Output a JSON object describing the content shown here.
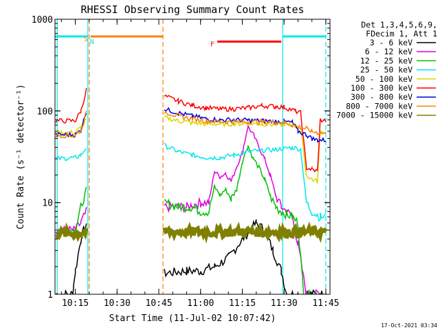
{
  "chart_data": {
    "type": "line",
    "title": "RHESSI Observing Summary Count Rates",
    "xlabel": "Start Time (11-Jul-02 10:07:42)",
    "ylabel": "Count Rate (s⁻¹ detector⁻¹)",
    "y_scale": "log",
    "ylim": [
      1,
      1000
    ],
    "xlim": [
      "10:07:42",
      "11:46:30"
    ],
    "x_ticks": [
      "10:15",
      "10:30",
      "10:45",
      "11:00",
      "11:15",
      "11:30",
      "11:45"
    ],
    "y_ticks": [
      "1",
      "10",
      "100",
      "1000"
    ],
    "legend_header": [
      "Det 1,3,4,5,6,9,",
      "FDecim 1, Att 1"
    ],
    "legend_position": "right",
    "footer_date": "17-Oct-2021 03:34",
    "markers": [
      {
        "label": "S",
        "start": "10:20:30",
        "end": "10:46:30",
        "level": 650,
        "color": "#ff8000"
      },
      {
        "label": "N",
        "start": "10:07:42",
        "end": "10:19:30",
        "level": 650,
        "color": "#00e8e8"
      },
      {
        "label": "F",
        "start": "11:06:00",
        "end": "11:29:00",
        "level": 570,
        "color": "#ff0000"
      },
      {
        "label": "",
        "start": "11:29:30",
        "end": "11:45:00",
        "level": 650,
        "color": "#00e8e8"
      }
    ],
    "vertical_lines": [
      {
        "time": "10:08:30",
        "color": "#00e8e8",
        "style": "solid"
      },
      {
        "time": "10:19:30",
        "color": "#00e8e8",
        "style": "solid"
      },
      {
        "time": "10:20:00",
        "color": "#ff8000",
        "style": "dashed"
      },
      {
        "time": "10:46:30",
        "color": "#ff8000",
        "style": "dashed"
      },
      {
        "time": "11:29:30",
        "color": "#00e8e8",
        "style": "solid"
      },
      {
        "time": "11:45:00",
        "color": "#00e8e8",
        "style": "dashed"
      }
    ],
    "series": [
      {
        "name": "3 - 6 keV",
        "color": "#000000",
        "points": [
          [
            "10:08",
            1
          ],
          [
            "10:14",
            1
          ],
          [
            "10:15",
            1.8
          ],
          [
            "10:17",
            4
          ],
          [
            "10:19",
            6
          ],
          [
            "10:46:30",
            null
          ],
          [
            "10:47",
            1.7
          ],
          [
            "10:55",
            1.8
          ],
          [
            "11:00",
            1.8
          ],
          [
            "11:05",
            2
          ],
          [
            "11:10",
            2.5
          ],
          [
            "11:15",
            4
          ],
          [
            "11:20",
            6
          ],
          [
            "11:23",
            5
          ],
          [
            "11:26",
            3
          ],
          [
            "11:29",
            1.8
          ],
          [
            "11:31",
            1
          ],
          [
            "11:45",
            1
          ]
        ]
      },
      {
        "name": "6 - 12 keV",
        "color": "#e000e0",
        "points": [
          [
            "10:08",
            5
          ],
          [
            "10:15",
            5
          ],
          [
            "10:17",
            6
          ],
          [
            "10:19",
            8
          ],
          [
            "10:46:30",
            null
          ],
          [
            "10:47",
            9
          ],
          [
            "10:55",
            9
          ],
          [
            "11:00",
            10
          ],
          [
            "11:03",
            10
          ],
          [
            "11:05",
            22
          ],
          [
            "11:07",
            19
          ],
          [
            "11:09",
            21
          ],
          [
            "11:11",
            17
          ],
          [
            "11:13",
            25
          ],
          [
            "11:15",
            35
          ],
          [
            "11:17",
            68
          ],
          [
            "11:19",
            55
          ],
          [
            "11:21",
            40
          ],
          [
            "11:23",
            30
          ],
          [
            "11:25",
            20
          ],
          [
            "11:27",
            12
          ],
          [
            "11:29",
            9
          ],
          [
            "11:31",
            8
          ],
          [
            "11:33",
            7
          ],
          [
            "11:35",
            3.5
          ],
          [
            "11:38",
            1
          ],
          [
            "11:45",
            1
          ]
        ]
      },
      {
        "name": "12 - 25 keV",
        "color": "#00c000",
        "points": [
          [
            "10:08",
            5
          ],
          [
            "10:15",
            5
          ],
          [
            "10:17",
            9
          ],
          [
            "10:19",
            14
          ],
          [
            "10:46:30",
            null
          ],
          [
            "10:47",
            10
          ],
          [
            "10:52",
            9
          ],
          [
            "10:57",
            9
          ],
          [
            "11:00",
            8
          ],
          [
            "11:03",
            8
          ],
          [
            "11:05",
            15
          ],
          [
            "11:07",
            12
          ],
          [
            "11:09",
            14
          ],
          [
            "11:11",
            11
          ],
          [
            "11:13",
            14
          ],
          [
            "11:15",
            28
          ],
          [
            "11:17",
            42
          ],
          [
            "11:19",
            30
          ],
          [
            "11:21",
            24
          ],
          [
            "11:23",
            18
          ],
          [
            "11:25",
            12
          ],
          [
            "11:27",
            9
          ],
          [
            "11:29",
            8
          ],
          [
            "11:31",
            7.5
          ],
          [
            "11:33",
            7
          ],
          [
            "11:35",
            6
          ],
          [
            "11:37",
            1
          ],
          [
            "11:45",
            1
          ]
        ]
      },
      {
        "name": "25 - 50 keV",
        "color": "#00e8e8",
        "points": [
          [
            "10:08",
            30
          ],
          [
            "10:15",
            31
          ],
          [
            "10:17",
            33
          ],
          [
            "10:19",
            40
          ],
          [
            "10:46:30",
            null
          ],
          [
            "10:47",
            42
          ],
          [
            "10:52",
            36
          ],
          [
            "10:57",
            33
          ],
          [
            "11:02",
            31
          ],
          [
            "11:07",
            31
          ],
          [
            "11:12",
            33
          ],
          [
            "11:17",
            36
          ],
          [
            "11:22",
            37
          ],
          [
            "11:27",
            38
          ],
          [
            "11:30",
            39
          ],
          [
            "11:33",
            40
          ],
          [
            "11:36",
            38
          ],
          [
            "11:38",
            10
          ],
          [
            "11:40",
            8
          ],
          [
            "11:43",
            7
          ],
          [
            "11:45",
            7
          ]
        ]
      },
      {
        "name": "50 - 100 keV",
        "color": "#d8d800",
        "points": [
          [
            "10:08",
            58
          ],
          [
            "10:15",
            58
          ],
          [
            "10:17",
            66
          ],
          [
            "10:19",
            80
          ],
          [
            "10:46:30",
            null
          ],
          [
            "10:47",
            85
          ],
          [
            "10:52",
            78
          ],
          [
            "10:57",
            74
          ],
          [
            "11:02",
            72
          ],
          [
            "11:07",
            72
          ],
          [
            "11:12",
            72
          ],
          [
            "11:17",
            73
          ],
          [
            "11:22",
            72
          ],
          [
            "11:27",
            71
          ],
          [
            "11:30",
            71
          ],
          [
            "11:34",
            70
          ],
          [
            "11:36",
            65
          ],
          [
            "11:38",
            20
          ],
          [
            "11:40",
            18
          ],
          [
            "11:42",
            17
          ],
          [
            "11:43",
            60
          ],
          [
            "11:45",
            58
          ]
        ]
      },
      {
        "name": "100 - 300 keV",
        "color": "#ff0000",
        "points": [
          [
            "10:08",
            78
          ],
          [
            "10:15",
            78
          ],
          [
            "10:17",
            100
          ],
          [
            "10:19",
            170
          ],
          [
            "10:46:30",
            null
          ],
          [
            "10:47",
            145
          ],
          [
            "10:52",
            128
          ],
          [
            "10:57",
            115
          ],
          [
            "11:02",
            108
          ],
          [
            "11:07",
            105
          ],
          [
            "11:12",
            105
          ],
          [
            "11:17",
            108
          ],
          [
            "11:22",
            114
          ],
          [
            "11:27",
            112
          ],
          [
            "11:30",
            110
          ],
          [
            "11:34",
            100
          ],
          [
            "11:36",
            95
          ],
          [
            "11:38",
            24
          ],
          [
            "11:40",
            23
          ],
          [
            "11:42",
            22
          ],
          [
            "11:43",
            80
          ],
          [
            "11:45",
            78
          ]
        ]
      },
      {
        "name": "300 - 800 keV",
        "color": "#0000d8",
        "points": [
          [
            "10:08",
            55
          ],
          [
            "10:15",
            55
          ],
          [
            "10:17",
            62
          ],
          [
            "10:19",
            100
          ],
          [
            "10:46:30",
            null
          ],
          [
            "10:47",
            105
          ],
          [
            "10:52",
            95
          ],
          [
            "10:57",
            88
          ],
          [
            "11:02",
            82
          ],
          [
            "11:07",
            80
          ],
          [
            "11:12",
            80
          ],
          [
            "11:17",
            79
          ],
          [
            "11:22",
            78
          ],
          [
            "11:27",
            77
          ],
          [
            "11:30",
            76
          ],
          [
            "11:33",
            75
          ],
          [
            "11:35",
            60
          ],
          [
            "11:38",
            55
          ],
          [
            "11:40",
            50
          ],
          [
            "11:42",
            48
          ],
          [
            "11:45",
            48
          ]
        ]
      },
      {
        "name": "800 - 7000 keV",
        "color": "#ff8000",
        "points": [
          [
            "10:08",
            54
          ],
          [
            "10:15",
            54
          ],
          [
            "10:17",
            62
          ],
          [
            "10:19",
            95
          ],
          [
            "10:46:30",
            null
          ],
          [
            "10:47",
            98
          ],
          [
            "10:52",
            88
          ],
          [
            "10:57",
            82
          ],
          [
            "11:02",
            78
          ],
          [
            "11:07",
            76
          ],
          [
            "11:12",
            76
          ],
          [
            "11:17",
            76
          ],
          [
            "11:22",
            76
          ],
          [
            "11:27",
            75
          ],
          [
            "11:30",
            75
          ],
          [
            "11:33",
            70
          ],
          [
            "11:36",
            66
          ],
          [
            "11:38",
            64
          ],
          [
            "11:40",
            60
          ],
          [
            "11:42",
            58
          ],
          [
            "11:45",
            57
          ]
        ]
      },
      {
        "name": "7000 - 15000 keV",
        "color": "#808000",
        "points": [
          [
            "10:08",
            4.6
          ],
          [
            "10:15",
            4.6
          ],
          [
            "10:17",
            4.7
          ],
          [
            "10:19",
            4.7
          ],
          [
            "10:46:30",
            null
          ],
          [
            "10:47",
            4.8
          ],
          [
            "10:55",
            4.8
          ],
          [
            "11:00",
            4.8
          ],
          [
            "11:10",
            4.8
          ],
          [
            "11:20",
            4.8
          ],
          [
            "11:30",
            4.8
          ],
          [
            "11:40",
            4.8
          ],
          [
            "11:45",
            4.8
          ]
        ]
      }
    ]
  }
}
